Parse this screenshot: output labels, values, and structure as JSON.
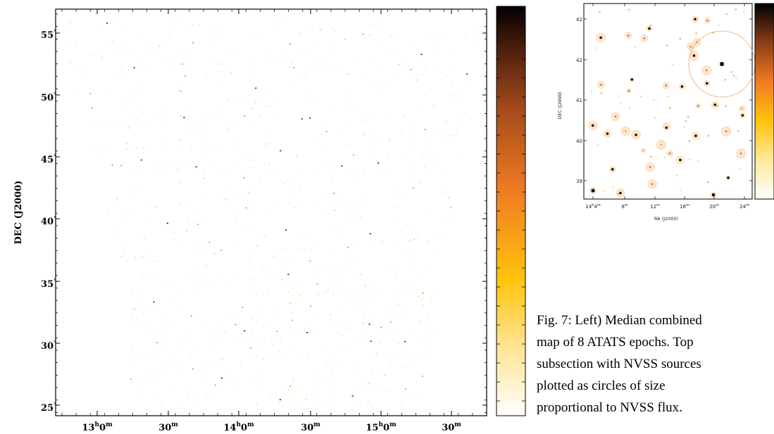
{
  "figure": {
    "left_panel": {
      "ylabel": "DEC (J2000)",
      "xtick_labels": [
        {
          "h": "13",
          "m": "0"
        },
        {
          "m": "30"
        },
        {
          "h": "14",
          "m": "0"
        },
        {
          "m": "30"
        },
        {
          "h": "15",
          "m": "0"
        },
        {
          "m": "30"
        }
      ],
      "ytick_labels": [
        "55",
        "50",
        "45",
        "40",
        "35",
        "30",
        "25"
      ]
    },
    "right_panel": {
      "ylabel": "DEC (J2000)",
      "xlabel": "RA (J2000)",
      "ytick_labels": [
        "42",
        "42",
        "41",
        "40",
        "39"
      ],
      "xtick_labels": [
        {
          "h": "14",
          "m": "4"
        },
        {
          "m": "8"
        },
        {
          "m": "12"
        },
        {
          "m": "16"
        },
        {
          "m": "20"
        },
        {
          "m": "24"
        }
      ]
    },
    "colormap": {
      "low": "#ffffff",
      "mid1": "#ffc20a",
      "mid2": "#f07b22",
      "high": "#000000"
    }
  },
  "caption": {
    "lines": [
      "Fig. 7: Left) Median combined",
      "map of 8 ATATS epochs. Top",
      "subsection with NVSS sources",
      "plotted as circles of size",
      "proportional to NVSS flux."
    ]
  }
}
